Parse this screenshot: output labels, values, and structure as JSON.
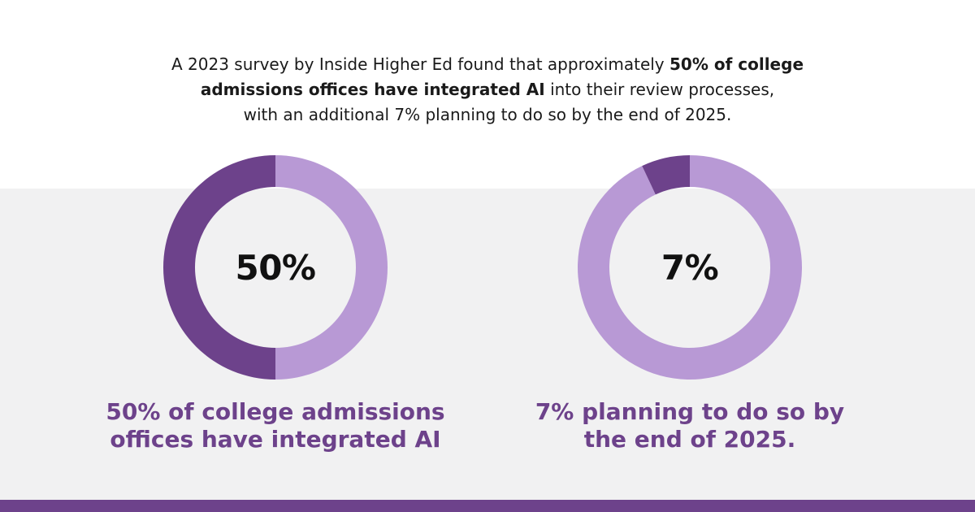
{
  "intro": {
    "line1_pre": "A 2023 survey by Inside Higher Ed found that approximately ",
    "line1_bold": "50% of college",
    "line2_bold": "admissions offices have integrated AI",
    "line2_post": " into their review processes,",
    "line3": "with an additional 7% planning to do so by the end of 2025."
  },
  "colors": {
    "primary": "#6d428b",
    "light": "#b899d5",
    "band": "#f1f1f2"
  },
  "chart_data": [
    {
      "type": "pie",
      "variant": "donut",
      "center_label": "50%",
      "values": [
        50,
        50
      ],
      "segment_colors": [
        "#b899d5",
        "#6d428b"
      ],
      "highlight_index": 1,
      "caption_line1": "50% of college admissions",
      "caption_line2": "offices have integrated AI"
    },
    {
      "type": "pie",
      "variant": "donut",
      "center_label": "7%",
      "values": [
        93,
        7
      ],
      "segment_colors": [
        "#b899d5",
        "#6d428b"
      ],
      "highlight_index": 1,
      "caption_line1": "7% planning to do so by",
      "caption_line2": "the end of 2025."
    }
  ]
}
